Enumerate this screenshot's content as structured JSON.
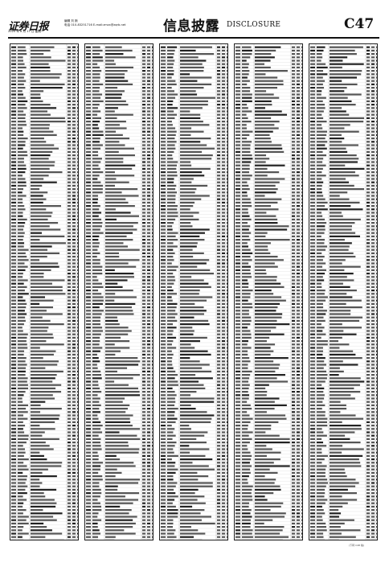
{
  "masthead": {
    "logo": "证券日报",
    "date_line": "2020 年 8 月 17 日 星期一",
    "editor_line": "编辑 刘 斯",
    "contact_line": "电话 010-83251716  E-mail:zmzx@zqrb.net",
    "section_title_cn": "信息披露",
    "section_title_en": "DISCLOSURE",
    "page_number": "C47"
  },
  "footer_note": "(下转 C48 版)"
}
